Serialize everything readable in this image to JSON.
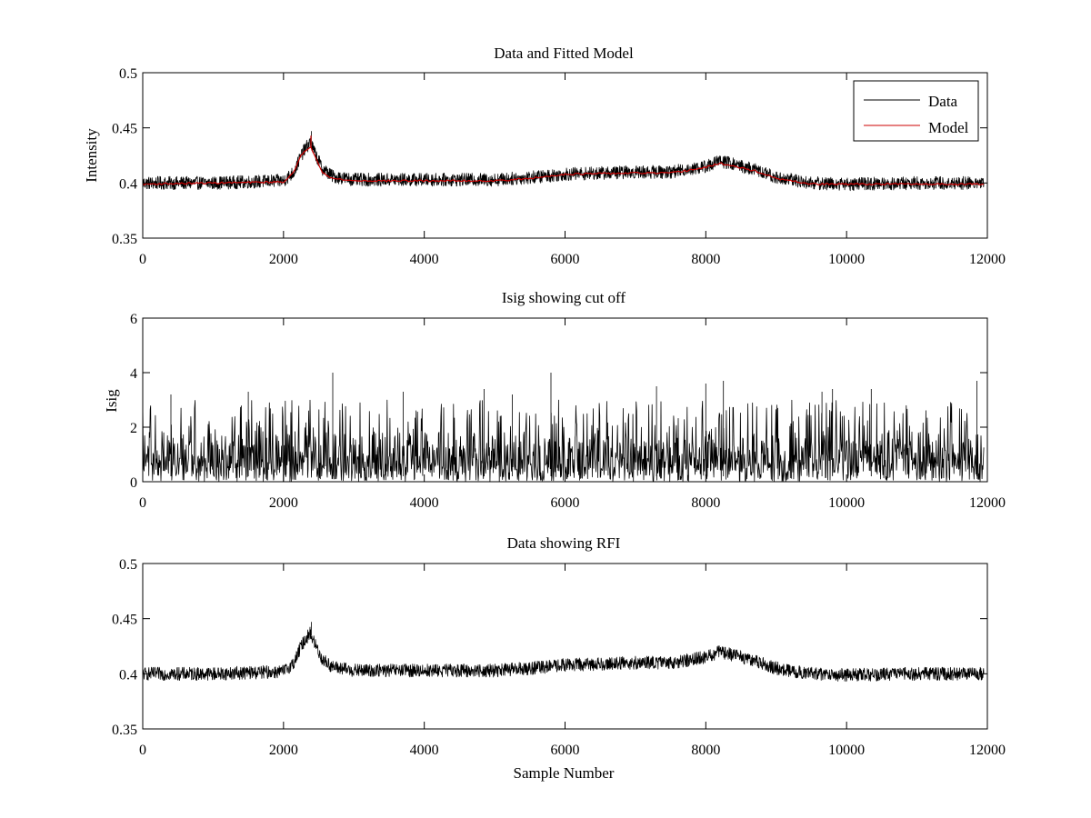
{
  "figure": {
    "background": "#ffffff"
  },
  "chart_data": [
    {
      "type": "line",
      "title": "Data and Fitted Model",
      "xlabel": "",
      "ylabel": "Intensity",
      "xlim": [
        0,
        12000
      ],
      "ylim": [
        0.35,
        0.5
      ],
      "xticks": [
        "0",
        "2000",
        "4000",
        "6000",
        "8000",
        "10000",
        "12000"
      ],
      "yticks": [
        "0.35",
        "0.4",
        "0.45",
        "0.5"
      ],
      "grid": false,
      "legend": {
        "placement": "top-right",
        "entries": [
          "Data",
          "Model"
        ]
      },
      "x_extent": [
        0,
        11950
      ],
      "series": [
        {
          "name": "Data",
          "color": "#000000",
          "noise_amplitude": 0.006,
          "x": [
            0,
            1000,
            2000,
            2150,
            2250,
            2320,
            2380,
            2440,
            2550,
            2700,
            3000,
            4000,
            5000,
            5500,
            6000,
            7000,
            7500,
            8000,
            8200,
            8400,
            8700,
            9000,
            9500,
            10000,
            11000,
            11950
          ],
          "values": [
            0.4,
            0.4,
            0.402,
            0.41,
            0.425,
            0.432,
            0.437,
            0.428,
            0.413,
            0.406,
            0.403,
            0.403,
            0.403,
            0.405,
            0.408,
            0.41,
            0.41,
            0.415,
            0.42,
            0.417,
            0.412,
            0.405,
            0.4,
            0.399,
            0.4,
            0.4
          ]
        },
        {
          "name": "Model",
          "color": "#cc0000",
          "noise_amplitude": 0.0008,
          "x": [
            0,
            1000,
            2000,
            2150,
            2250,
            2320,
            2380,
            2440,
            2550,
            2700,
            3000,
            4000,
            5000,
            5500,
            6000,
            7000,
            7500,
            8000,
            8200,
            8400,
            8700,
            9000,
            9500,
            10000,
            11000,
            11950
          ],
          "values": [
            0.399,
            0.4,
            0.401,
            0.41,
            0.425,
            0.43,
            0.433,
            0.426,
            0.41,
            0.404,
            0.402,
            0.402,
            0.402,
            0.404,
            0.408,
            0.409,
            0.409,
            0.414,
            0.418,
            0.415,
            0.411,
            0.404,
            0.399,
            0.399,
            0.399,
            0.399
          ]
        }
      ],
      "spikes": [
        {
          "series": "Model",
          "x": 2390,
          "value": 0.443
        },
        {
          "series": "Data",
          "x": 2395,
          "value": 0.447
        }
      ]
    },
    {
      "type": "line",
      "title": "Isig showing cut off",
      "xlabel": "",
      "ylabel": "Isig",
      "xlim": [
        0,
        12000
      ],
      "ylim": [
        0,
        6
      ],
      "xticks": [
        "0",
        "2000",
        "4000",
        "6000",
        "8000",
        "10000",
        "12000"
      ],
      "yticks": [
        "0",
        "2",
        "4",
        "6"
      ],
      "grid": false,
      "x_extent": [
        0,
        11950
      ],
      "series": [
        {
          "name": "",
          "color": "#000000",
          "typical_range": [
            0,
            2
          ],
          "max_value": 4.0
        }
      ],
      "peaks": [
        {
          "x": 2700,
          "value": 4.0
        },
        {
          "x": 5800,
          "value": 4.0
        },
        {
          "x": 8250,
          "value": 3.7
        },
        {
          "x": 11850,
          "value": 3.7
        },
        {
          "x": 4850,
          "value": 3.4
        },
        {
          "x": 9800,
          "value": 3.4
        },
        {
          "x": 7300,
          "value": 3.5
        },
        {
          "x": 8000,
          "value": 3.6
        },
        {
          "x": 9650,
          "value": 3.3
        },
        {
          "x": 3700,
          "value": 3.3
        },
        {
          "x": 1500,
          "value": 3.3
        },
        {
          "x": 400,
          "value": 3.2
        },
        {
          "x": 5250,
          "value": 3.2
        },
        {
          "x": 10350,
          "value": 3.4
        }
      ]
    },
    {
      "type": "line",
      "title": "Data showing RFI",
      "xlabel": "Sample Number",
      "ylabel": "",
      "xlim": [
        0,
        12000
      ],
      "ylim": [
        0.35,
        0.5
      ],
      "xticks": [
        "0",
        "2000",
        "4000",
        "6000",
        "8000",
        "10000",
        "12000"
      ],
      "yticks": [
        "0.35",
        "0.4",
        "0.45",
        "0.5"
      ],
      "grid": false,
      "x_extent": [
        0,
        11950
      ],
      "series": [
        {
          "name": "",
          "color": "#000000",
          "noise_amplitude": 0.006,
          "x": [
            0,
            1000,
            2000,
            2150,
            2250,
            2320,
            2380,
            2440,
            2550,
            2700,
            3000,
            4000,
            5000,
            5500,
            6000,
            7000,
            7500,
            8000,
            8200,
            8400,
            8700,
            9000,
            9500,
            10000,
            11000,
            11950
          ],
          "values": [
            0.4,
            0.4,
            0.402,
            0.41,
            0.425,
            0.432,
            0.437,
            0.428,
            0.413,
            0.406,
            0.403,
            0.403,
            0.403,
            0.405,
            0.408,
            0.41,
            0.41,
            0.415,
            0.42,
            0.417,
            0.412,
            0.405,
            0.4,
            0.399,
            0.4,
            0.4
          ]
        }
      ],
      "spikes": [
        {
          "series": "",
          "x": 2395,
          "value": 0.447
        }
      ]
    }
  ]
}
